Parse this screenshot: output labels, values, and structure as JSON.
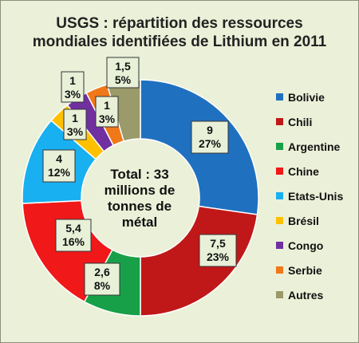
{
  "chart_data": {
    "type": "pie",
    "variant": "doughnut",
    "title_lines": [
      "USGS : répartition des ressources",
      "mondiales identifiées de Lithium en 2011"
    ],
    "center_label_lines": [
      "Total : 33",
      "millions de",
      "tonnes de",
      "métal"
    ],
    "series": [
      {
        "name": "Bolivie",
        "value": 9,
        "value_label": "9",
        "percent_label": "27%",
        "color": "#2070c0"
      },
      {
        "name": "Chili",
        "value": 7.5,
        "value_label": "7,5",
        "percent_label": "23%",
        "color": "#c01818"
      },
      {
        "name": "Argentine",
        "value": 2.6,
        "value_label": "2,6",
        "percent_label": "8%",
        "color": "#18a048"
      },
      {
        "name": "Chine",
        "value": 5.4,
        "value_label": "5,4",
        "percent_label": "16%",
        "color": "#f01818"
      },
      {
        "name": "Etats-Unis",
        "value": 4,
        "value_label": "4",
        "percent_label": "12%",
        "color": "#18b0f0"
      },
      {
        "name": "Brésil",
        "value": 1,
        "value_label": "1",
        "percent_label": "3%",
        "color": "#ffc000"
      },
      {
        "name": "Congo",
        "value": 1,
        "value_label": "1",
        "percent_label": "3%",
        "color": "#7030a0"
      },
      {
        "name": "Serbie",
        "value": 1,
        "value_label": "1",
        "percent_label": "3%",
        "color": "#f07818"
      },
      {
        "name": "Autres",
        "value": 1.5,
        "value_label": "1,5",
        "percent_label": "5%",
        "color": "#9a9a6a"
      }
    ],
    "legend_position": "right",
    "label_background": "#e8f0d8"
  }
}
